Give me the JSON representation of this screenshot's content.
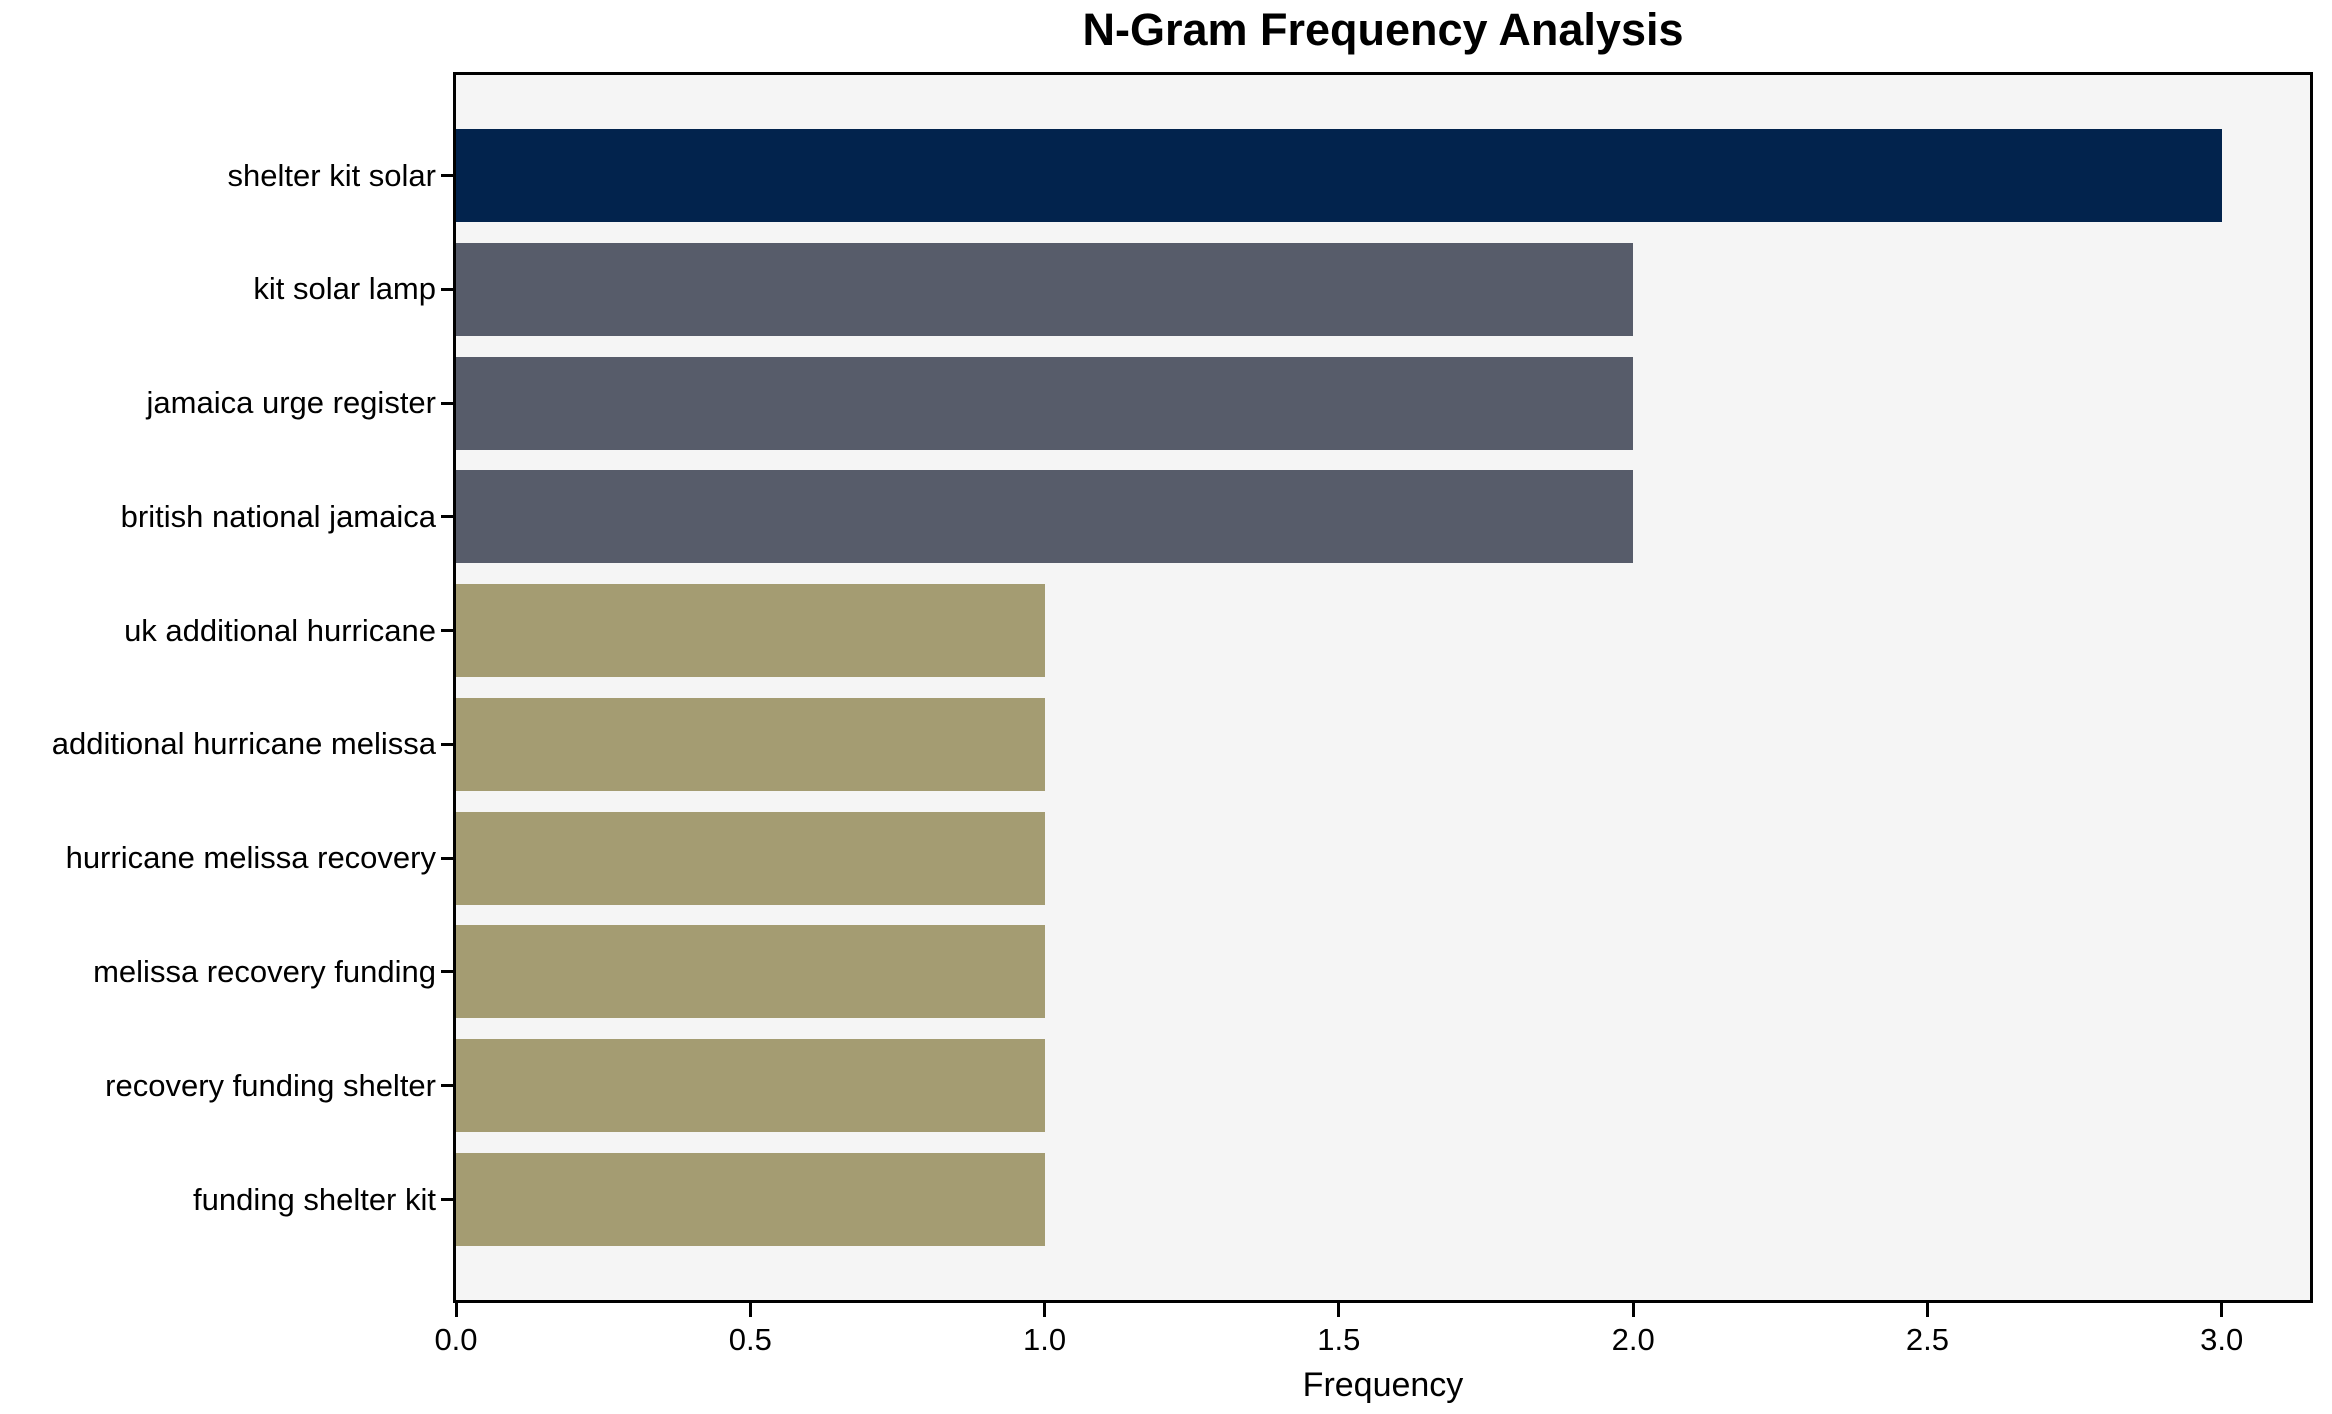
{
  "chart_data": {
    "type": "bar",
    "orientation": "horizontal",
    "title": "N-Gram Frequency Analysis",
    "xlabel": "Frequency",
    "ylabel": "",
    "categories": [
      "shelter kit solar",
      "kit solar lamp",
      "jamaica urge register",
      "british national jamaica",
      "uk additional hurricane",
      "additional hurricane melissa",
      "hurricane melissa recovery",
      "melissa recovery funding",
      "recovery funding shelter",
      "funding shelter kit"
    ],
    "values": [
      3,
      2,
      2,
      2,
      1,
      1,
      1,
      1,
      1,
      1
    ],
    "bar_colors": [
      "#02234D",
      "#575C6A",
      "#575C6A",
      "#575C6A",
      "#A49C72",
      "#A49C72",
      "#A49C72",
      "#A49C72",
      "#A49C72",
      "#A49C72"
    ],
    "xlim": [
      0,
      3.15
    ],
    "x_ticks": [
      "0.0",
      "0.5",
      "1.0",
      "1.5",
      "2.0",
      "2.5",
      "3.0"
    ],
    "x_tick_values": [
      0,
      0.5,
      1.0,
      1.5,
      2.0,
      2.5,
      3.0
    ],
    "grid": false,
    "legend": null,
    "plot_background": "#F5F5F5",
    "figure_background": "#FFFFFF",
    "spine_color": "#000000",
    "text_color": "#000000"
  }
}
